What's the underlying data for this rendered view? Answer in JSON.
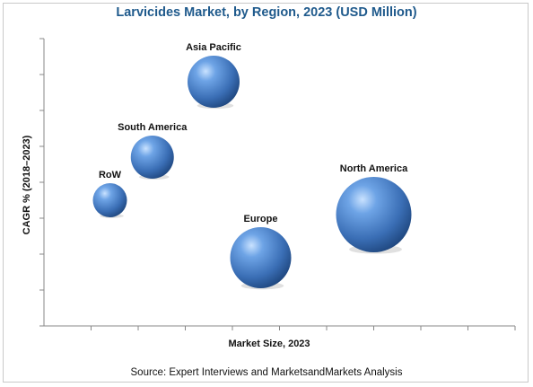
{
  "chart_data": {
    "type": "bubble",
    "title": "Larvicides Market, by Region, 2023 (USD Million)",
    "xlabel": "Market Size, 2023",
    "ylabel": "CAGR % (2018–2023)",
    "source": "Source: Expert Interviews and MarketsandMarkets Analysis",
    "grid": false,
    "x_ticks": 10,
    "y_ticks": 8,
    "xlim": [
      0,
      10
    ],
    "ylim": [
      0,
      8
    ],
    "points": [
      {
        "label": "Asia Pacific",
        "x": 3.6,
        "y": 6.8,
        "size": 29
      },
      {
        "label": "South America",
        "x": 2.3,
        "y": 4.7,
        "size": 24
      },
      {
        "label": "RoW",
        "x": 1.4,
        "y": 3.5,
        "size": 19
      },
      {
        "label": "North America",
        "x": 7.0,
        "y": 3.1,
        "size": 42
      },
      {
        "label": "Europe",
        "x": 4.6,
        "y": 1.9,
        "size": 34
      }
    ],
    "bubble_color": "#4b7fc4"
  }
}
